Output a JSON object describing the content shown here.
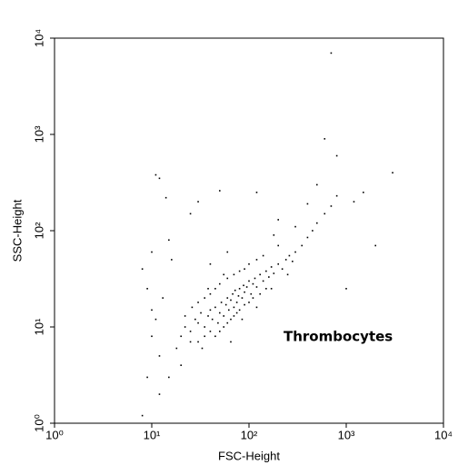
{
  "chart_data": {
    "type": "scatter",
    "x_label": "FSC-Height",
    "y_label": "SSC-Height",
    "annotation": "Thrombocytes",
    "log_x": true,
    "log_y": true,
    "color": "#000000",
    "xlim": [
      1,
      10000
    ],
    "ylim": [
      1,
      10000
    ],
    "xticks": [
      {
        "value": 1,
        "label": "10⁰"
      },
      {
        "value": 10,
        "label": "10¹"
      },
      {
        "value": 100,
        "label": "10²"
      },
      {
        "value": 1000,
        "label": "10³"
      },
      {
        "value": 10000,
        "label": "10⁴"
      }
    ],
    "yticks": [
      {
        "value": 1,
        "label": "10⁰"
      },
      {
        "value": 10,
        "label": "10¹"
      },
      {
        "value": 100,
        "label": "10²"
      },
      {
        "value": 1000,
        "label": "10³"
      },
      {
        "value": 10000,
        "label": "10⁴"
      }
    ],
    "x": [
      20,
      22,
      25,
      28,
      30,
      32,
      35,
      38,
      40,
      42,
      45,
      48,
      50,
      52,
      55,
      58,
      60,
      62,
      65,
      68,
      70,
      72,
      75,
      78,
      80,
      85,
      88,
      90,
      95,
      100,
      105,
      110,
      115,
      120,
      130,
      140,
      150,
      160,
      170,
      180,
      200,
      220,
      240,
      260,
      280,
      300,
      350,
      400,
      450,
      500,
      600,
      700,
      800,
      25,
      30,
      35,
      40,
      45,
      50,
      55,
      60,
      65,
      70,
      75,
      80,
      90,
      100,
      110,
      130,
      150,
      30,
      35,
      40,
      45,
      50,
      60,
      70,
      80,
      90,
      100,
      120,
      140,
      18,
      22,
      26,
      33,
      38,
      55,
      65,
      85,
      120,
      170,
      250,
      200,
      12,
      11,
      14,
      25,
      8,
      9,
      10,
      12,
      9,
      8,
      12,
      15,
      20,
      10,
      15,
      30,
      50,
      120,
      200,
      500,
      600,
      700,
      3000,
      2000,
      1000,
      800,
      1200,
      1500,
      400,
      300,
      180,
      60,
      40,
      10,
      11,
      13,
      16
    ],
    "y": [
      8,
      10,
      9,
      12,
      11,
      14,
      10,
      13,
      15,
      12,
      16,
      11,
      14,
      18,
      13,
      17,
      20,
      15,
      19,
      22,
      16,
      24,
      18,
      21,
      25,
      20,
      27,
      23,
      26,
      30,
      22,
      28,
      32,
      26,
      35,
      30,
      38,
      33,
      42,
      36,
      45,
      40,
      50,
      55,
      48,
      60,
      70,
      85,
      100,
      120,
      150,
      180,
      230,
      7,
      7,
      8,
      9,
      8,
      9,
      10,
      11,
      12,
      13,
      14,
      15,
      17,
      18,
      20,
      22,
      25,
      18,
      20,
      22,
      25,
      28,
      32,
      35,
      38,
      40,
      45,
      50,
      55,
      6,
      13,
      16,
      6,
      25,
      35,
      7,
      12,
      16,
      25,
      35,
      70,
      350,
      380,
      220,
      150,
      40,
      25,
      15,
      5,
      3,
      1.2,
      2,
      3,
      4,
      60,
      80,
      200,
      260,
      250,
      130,
      300,
      900,
      7000,
      400,
      70,
      25,
      600,
      200,
      250,
      190,
      110,
      90,
      60,
      45,
      8,
      12,
      20,
      50
    ]
  }
}
